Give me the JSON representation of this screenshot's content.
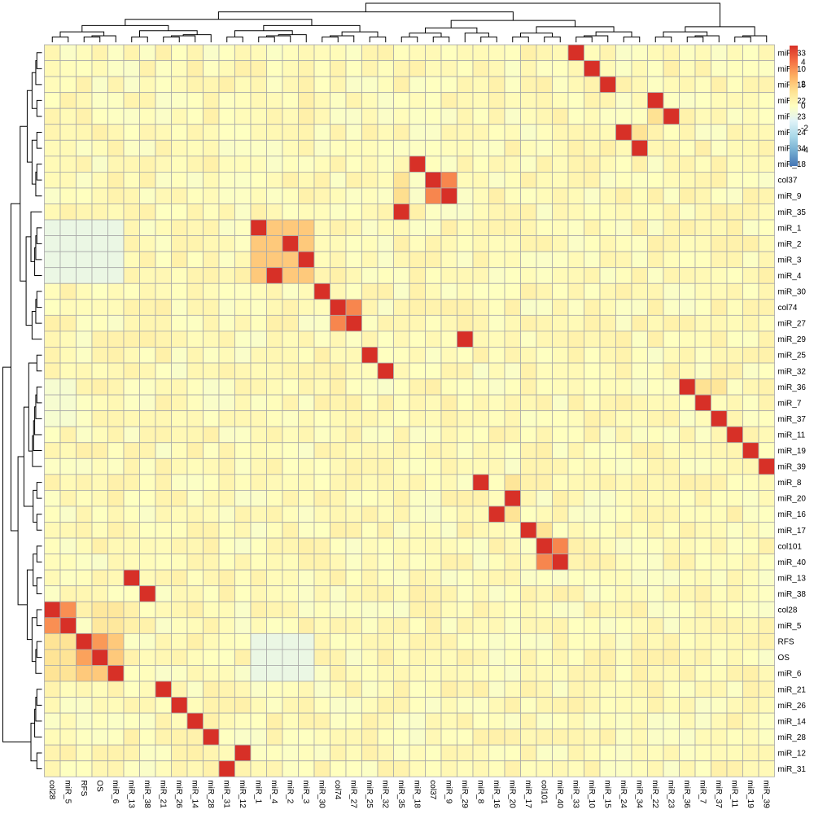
{
  "chart_data": {
    "type": "heatmap",
    "title": "",
    "xlabel": "",
    "ylabel": "",
    "columns": [
      "col28",
      "miR_5",
      "RFS",
      "OS",
      "miR_6",
      "miR_13",
      "miR_38",
      "miR_21",
      "miR_26",
      "miR_14",
      "miR_28",
      "miR_31",
      "miR_12",
      "miR_1",
      "miR_4",
      "miR_2",
      "miR_3",
      "miR_30",
      "col74",
      "miR_27",
      "miR_25",
      "miR_32",
      "miR_35",
      "miR_18",
      "col37",
      "miR_9",
      "miR_29",
      "miR_8",
      "miR_16",
      "miR_20",
      "miR_17",
      "col101",
      "miR_40",
      "miR_33",
      "miR_10",
      "miR_15",
      "miR_24",
      "miR_34",
      "miR_22",
      "miR_23",
      "miR_36",
      "miR_7",
      "miR_37",
      "miR_11",
      "miR_19",
      "miR_39"
    ],
    "rows": [
      "miR_33",
      "miR_10",
      "miR_15",
      "miR_22",
      "miR_23",
      "miR_24",
      "miR_34",
      "miR_18",
      "col37",
      "miR_9",
      "miR_35",
      "miR_1",
      "miR_2",
      "miR_3",
      "miR_4",
      "miR_30",
      "col74",
      "miR_27",
      "miR_29",
      "miR_25",
      "miR_32",
      "miR_36",
      "miR_7",
      "miR_37",
      "miR_11",
      "miR_19",
      "miR_39",
      "miR_8",
      "miR_20",
      "miR_16",
      "miR_17",
      "col101",
      "miR_40",
      "miR_13",
      "miR_38",
      "col28",
      "miR_5",
      "RFS",
      "OS",
      "miR_6",
      "miR_21",
      "miR_26",
      "miR_14",
      "miR_28",
      "miR_12",
      "miR_31"
    ],
    "row_groups": [
      [
        0,
        1,
        2
      ],
      [
        3,
        4
      ],
      [
        5,
        6
      ],
      [
        7,
        8,
        9
      ],
      [
        10
      ],
      [
        11,
        12,
        13,
        14
      ],
      [
        15,
        16,
        17
      ],
      [
        18
      ],
      [
        19,
        20
      ],
      [
        21,
        22,
        23,
        24,
        25,
        26
      ],
      [
        27,
        28
      ],
      [
        29,
        30
      ],
      [
        31,
        32
      ],
      [
        33,
        34
      ],
      [
        35,
        36
      ],
      [
        37,
        38,
        39
      ],
      [
        40,
        41,
        42,
        43
      ],
      [
        44,
        45
      ]
    ],
    "blocks": [
      {
        "rows": [
          "col37",
          "miR_9"
        ],
        "cols": [
          "col37",
          "miR_9"
        ],
        "value": 3.6
      },
      {
        "rows": [
          "col101",
          "miR_40"
        ],
        "cols": [
          "col101",
          "miR_40"
        ],
        "value": 3.6
      },
      {
        "rows": [
          "col74",
          "miR_27"
        ],
        "cols": [
          "col74",
          "miR_27"
        ],
        "value": 3.6
      },
      {
        "rows": [
          "col28",
          "miR_5"
        ],
        "cols": [
          "col28",
          "miR_5"
        ],
        "value": 3.4
      },
      {
        "rows": [
          "miR_1",
          "miR_2",
          "miR_3",
          "miR_4"
        ],
        "cols": [
          "miR_1",
          "miR_4",
          "miR_2",
          "miR_3"
        ],
        "value": 2.0
      },
      {
        "rows": [
          "RFS",
          "OS",
          "miR_6"
        ],
        "cols": [
          "RFS",
          "OS",
          "miR_6"
        ],
        "value": 2.0
      },
      {
        "rows": [
          "col28",
          "miR_5"
        ],
        "cols": [
          "OS",
          "miR_6"
        ],
        "value": 1.0
      },
      {
        "rows": [
          "RFS",
          "OS",
          "miR_6"
        ],
        "cols": [
          "col28",
          "miR_5"
        ],
        "value": 1.2
      },
      {
        "rows": [
          "miR_1",
          "miR_2",
          "miR_3",
          "miR_4"
        ],
        "cols": [
          "col28",
          "miR_5",
          "RFS",
          "OS",
          "miR_6"
        ],
        "value": -0.9
      },
      {
        "rows": [
          "RFS",
          "OS",
          "miR_6"
        ],
        "cols": [
          "miR_1",
          "miR_4",
          "miR_2",
          "miR_3"
        ],
        "value": -0.9
      },
      {
        "rows": [
          "miR_36",
          "miR_7",
          "miR_37"
        ],
        "cols": [
          "col28",
          "miR_5"
        ],
        "value": -0.4
      }
    ],
    "cells": [
      {
        "row": "miR_1",
        "col": "miR_1",
        "value": 3.6
      },
      {
        "row": "miR_2",
        "col": "miR_2",
        "value": 3.6
      },
      {
        "row": "miR_3",
        "col": "miR_3",
        "value": 3.6
      },
      {
        "row": "miR_4",
        "col": "miR_4",
        "value": 3.6
      },
      {
        "row": "RFS",
        "col": "OS",
        "value": 3.2
      },
      {
        "row": "OS",
        "col": "OS",
        "value": 2.8
      },
      {
        "row": "OS",
        "col": "RFS",
        "value": 3.0
      },
      {
        "row": "miR_6",
        "col": "miR_6",
        "value": 3.4
      },
      {
        "row": "RFS",
        "col": "RFS",
        "value": 5.5
      },
      {
        "row": "miR_9",
        "col": "miR_35",
        "value": 1.4
      },
      {
        "row": "col37",
        "col": "miR_35",
        "value": 1.2
      },
      {
        "row": "miR_36",
        "col": "miR_7",
        "value": 1.3
      },
      {
        "row": "miR_36",
        "col": "miR_37",
        "value": 1.1
      },
      {
        "row": "miR_23",
        "col": "miR_22",
        "value": 1.3
      },
      {
        "row": "miR_24",
        "col": "miR_34",
        "value": 1.2
      },
      {
        "row": "miR_16",
        "col": "miR_20",
        "value": 1.2
      },
      {
        "row": "miR_8",
        "col": "miR_20",
        "value": 1.1
      },
      {
        "row": "miR_17",
        "col": "col101",
        "value": 1.2
      }
    ],
    "diagonal_value": 5.5,
    "default_value": 0.2,
    "scale": {
      "min": -5.5,
      "max": 5.5,
      "colors": [
        "#4575b4",
        "#74add1",
        "#abd9e9",
        "#e0f3f8",
        "#ffffbf",
        "#fee090",
        "#fdae61",
        "#f46d43",
        "#d73027"
      ]
    },
    "legend": {
      "position": "top-right",
      "ticks": [
        4,
        2,
        0,
        -2,
        -4
      ]
    },
    "grid": true
  }
}
